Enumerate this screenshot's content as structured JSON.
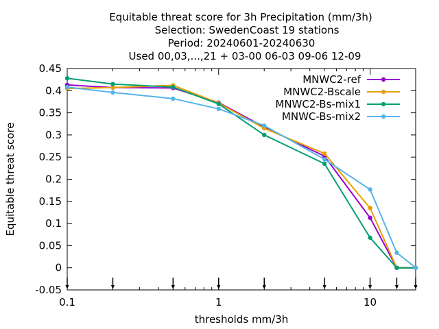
{
  "chart_data": {
    "type": "line",
    "title_lines": [
      "Equitable threat score  for 3h Precipitation (mm/3h)",
      "Selection: SwedenCoast      19 stations",
      "Period: 20240601-20240630",
      "Used 00,03,...,21 + 03-00 06-03 09-06 12-09"
    ],
    "xlabel": "thresholds mm/3h",
    "ylabel": "Equitable threat score",
    "x_scale": "log",
    "xlim": [
      0.1,
      20
    ],
    "ylim": [
      -0.05,
      0.45
    ],
    "x_ticks": [
      0.1,
      1,
      10
    ],
    "x_tick_labels": [
      "0.1",
      "1",
      "10"
    ],
    "y_ticks": [
      -0.05,
      0,
      0.05,
      0.1,
      0.15,
      0.2,
      0.25,
      0.3,
      0.35,
      0.4,
      0.45
    ],
    "y_tick_labels": [
      "-0.05",
      "0",
      "0.05",
      "0.1",
      "0.15",
      "0.2",
      "0.25",
      "0.3",
      "0.35",
      "0.4",
      "0.45"
    ],
    "threshold_markers": [
      0.1,
      0.2,
      0.5,
      1,
      2,
      5,
      10,
      15,
      20
    ],
    "grid": false,
    "legend_position": "top-right",
    "x": [
      0.1,
      0.2,
      0.5,
      1,
      2,
      5,
      10,
      15,
      20
    ],
    "series": [
      {
        "name": "MNWC2-ref",
        "color": "#9400d3",
        "values": [
          0.413,
          0.407,
          0.406,
          0.373,
          0.318,
          0.252,
          0.113,
          0.0,
          0.0
        ]
      },
      {
        "name": "MNWC2-Bscale",
        "color": "#e69f00",
        "values": [
          0.405,
          0.407,
          0.412,
          0.372,
          0.315,
          0.258,
          0.135,
          0.0,
          0.0
        ]
      },
      {
        "name": "MNWC2-Bs-mix1",
        "color": "#009e73",
        "values": [
          0.428,
          0.415,
          0.408,
          0.37,
          0.3,
          0.235,
          0.068,
          0.0,
          0.0
        ]
      },
      {
        "name": "MNWC-Bs-mix2",
        "color": "#56b4e9",
        "values": [
          0.408,
          0.396,
          0.382,
          0.359,
          0.321,
          0.245,
          0.177,
          0.034,
          0.0
        ]
      }
    ]
  }
}
